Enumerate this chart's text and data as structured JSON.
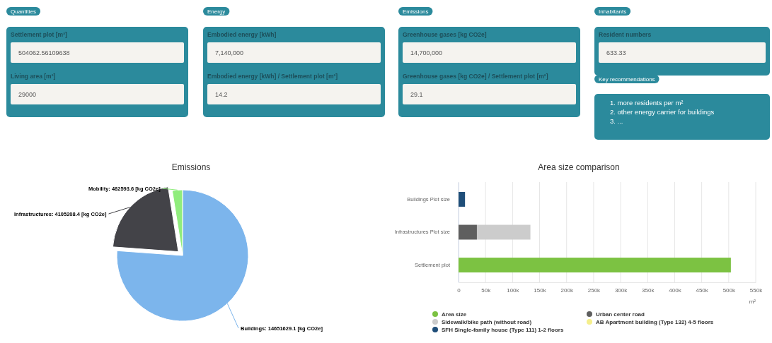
{
  "chart_data": [
    {
      "type": "other",
      "title": "Quantities",
      "annotations": [
        "Settlement plot [m²]",
        "504062.56109638",
        "Living area [m²]",
        "29000"
      ]
    },
    {
      "type": "other",
      "title": "Energy",
      "annotations": [
        "Embodied energy [kWh]",
        "7,140,000",
        "Embodied energy [kWh] / Settlement plot [m²]",
        "14.2"
      ]
    },
    {
      "type": "other",
      "title": "Emissions",
      "annotations": [
        "Greenhouse gases [kg CO2e]",
        "14,700,000",
        "Greenhouse gases [kg CO2e] / Settlement plot [m²]",
        "29.1"
      ]
    },
    {
      "type": "other",
      "title": "Inhabitants",
      "annotations": [
        "Resident numbers",
        "633.33"
      ]
    },
    {
      "type": "other",
      "title": "Key recommendations",
      "annotations": [
        "1. more residents per m²\n2. other energy carrier for buildings\n3. ..."
      ]
    },
    {
      "type": "pie",
      "title": "Emissions",
      "categories": [
        "Buildings",
        "Infrastructures",
        "Mobility"
      ],
      "values": [
        14651629.1,
        4105208.4,
        482593.6
      ],
      "colors": [
        "#7cb5ec",
        "#434348",
        "#90ed7d"
      ],
      "value_labels": [
        "14651629.1 [kg CO2e]",
        "4105208.4 [kg CO2e]",
        "482593.6 [kg CO2e]"
      ]
    },
    {
      "type": "bar",
      "title": "Area size comparison",
      "orientation": "horizontal",
      "stacked": true,
      "xlabel": "m²",
      "categories": [
        "Buildings Plot size",
        "Infrastructures Plot size",
        "Settlement plot"
      ],
      "series": [
        {
          "name": "Area size",
          "color": "#7cc242",
          "values": [
            null,
            null,
            504000
          ]
        },
        {
          "name": "Urban center road",
          "color": "#5f5f5f",
          "values": [
            null,
            34000,
            null
          ]
        },
        {
          "name": "Sidewalk/bike path (without road)",
          "color": "#cccccc",
          "values": [
            null,
            99000,
            null
          ]
        },
        {
          "name": "AB Apartment building (Type 132) 4-5 floors",
          "color": "#f5ef8c",
          "values": [
            null,
            null,
            null
          ]
        },
        {
          "name": "SFH Single-family house (Type 111) 1-2 floors",
          "color": "#1f4e79",
          "values": [
            12000,
            null,
            null
          ]
        }
      ],
      "xlim": [
        0,
        550000
      ],
      "xticks": [
        0,
        {
          "value": 50000,
          "label": "50k"
        },
        {
          "value": 100000,
          "label": "100k"
        },
        {
          "value": 150000,
          "label": "150k"
        },
        {
          "value": 200000,
          "label": "200k"
        },
        {
          "value": 250000,
          "label": "250k"
        },
        {
          "value": 300000,
          "label": "300k"
        },
        {
          "value": 350000,
          "label": "350k"
        },
        {
          "value": 400000,
          "label": "400k"
        },
        {
          "value": 450000,
          "label": "450k"
        },
        {
          "value": 500000,
          "label": "500k"
        },
        {
          "value": 550000,
          "label": "550k"
        }
      ],
      "grid": "x",
      "legend": "bottom"
    }
  ]
}
